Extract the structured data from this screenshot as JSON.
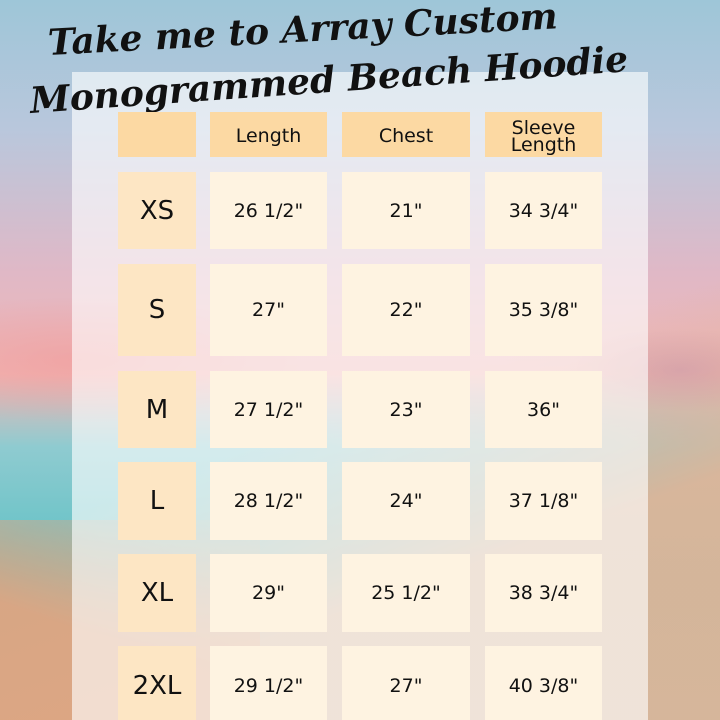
{
  "title": {
    "lines": [
      "Take me to Array Custom",
      "Monogrammed Beach Hoodie"
    ]
  },
  "table": {
    "header": [
      "Length",
      "Chest",
      "Sleeve Length"
    ],
    "rows": [
      [
        "XS",
        "26 1/2\"",
        "21\"",
        "34 3/4\""
      ],
      [
        "S",
        "27\"",
        "22\"",
        "35 3/8\""
      ],
      [
        "M",
        "27 1/2\"",
        "23\"",
        "36\""
      ],
      [
        "L",
        "28 1/2\"",
        "24\"",
        "37 1/8\""
      ],
      [
        "XL",
        "29\"",
        "25 1/2\"",
        "38 3/4\""
      ],
      [
        "2XL",
        "29 1/2\"",
        "27\"",
        "40 3/8\""
      ]
    ]
  }
}
